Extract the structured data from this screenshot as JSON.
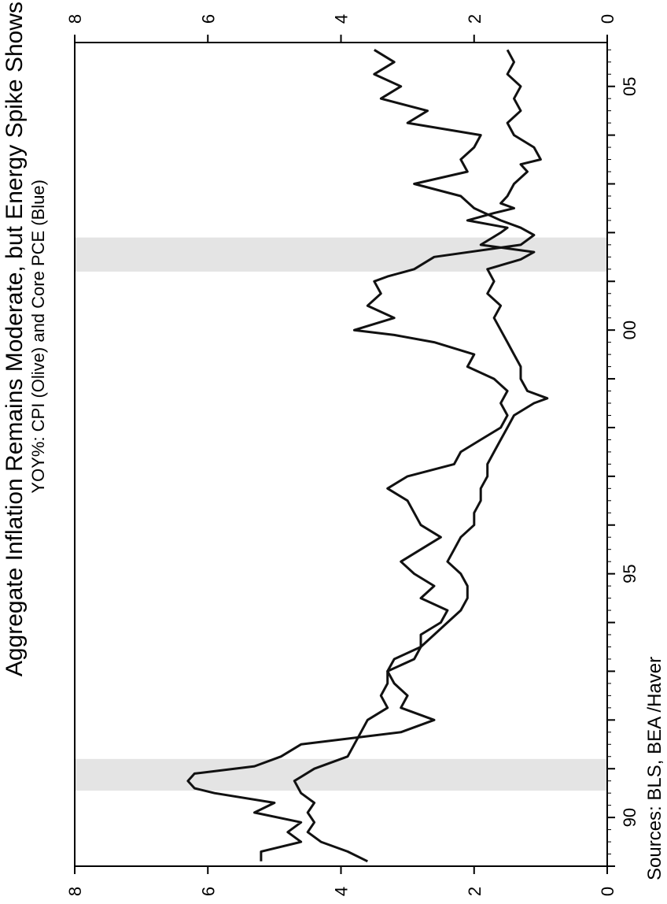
{
  "chart_data": {
    "type": "line",
    "title": "Aggregate Inflation Remains Moderate, but Energy Spike Shows",
    "subtitle": "YOY%: CPI (Olive) and Core PCE (Blue)",
    "source": "Sources:  BLS, BEA /Haver",
    "xlim": [
      1989,
      2005.9
    ],
    "ylim": [
      0,
      8
    ],
    "x_ticks": [
      {
        "value": 1990,
        "label": "90"
      },
      {
        "value": 1995,
        "label": "95"
      },
      {
        "value": 2000,
        "label": "00"
      },
      {
        "value": 2005,
        "label": "05"
      }
    ],
    "y_ticks": [
      {
        "value": 0,
        "label": "0"
      },
      {
        "value": 2,
        "label": "2"
      },
      {
        "value": 4,
        "label": "4"
      },
      {
        "value": 6,
        "label": "6"
      },
      {
        "value": 8,
        "label": "8"
      }
    ],
    "recessions": [
      [
        1990.55,
        1991.2
      ],
      [
        2001.2,
        2001.9
      ]
    ],
    "series": [
      {
        "name": "CPI",
        "x": [
          1989.1,
          1989.3,
          1989.5,
          1989.7,
          1989.9,
          1990.1,
          1990.3,
          1990.5,
          1990.6,
          1990.75,
          1990.9,
          1991.05,
          1991.25,
          1991.5,
          1991.75,
          1992.0,
          1992.25,
          1992.5,
          1992.75,
          1993.0,
          1993.25,
          1993.5,
          1993.75,
          1994.0,
          1994.25,
          1994.5,
          1994.75,
          1995.0,
          1995.25,
          1995.5,
          1995.75,
          1996.0,
          1996.25,
          1996.5,
          1996.75,
          1997.0,
          1997.25,
          1997.5,
          1997.75,
          1998.0,
          1998.25,
          1998.5,
          1998.75,
          1999.0,
          1999.25,
          1999.5,
          1999.75,
          1999.9,
          2000.0,
          2000.25,
          2000.5,
          2000.75,
          2001.0,
          2001.1,
          2001.25,
          2001.5,
          2001.75,
          2001.95,
          2002.1,
          2002.25,
          2002.5,
          2002.75,
          2003.0,
          2003.25,
          2003.5,
          2003.75,
          2004.0,
          2004.25,
          2004.5,
          2004.75,
          2005.0,
          2005.25,
          2005.5,
          2005.75
        ],
        "y": [
          5.2,
          5.2,
          4.6,
          4.8,
          4.6,
          5.3,
          5.0,
          5.9,
          6.2,
          6.3,
          6.2,
          5.3,
          4.9,
          4.6,
          3.1,
          2.6,
          3.1,
          3.0,
          3.2,
          3.3,
          3.2,
          2.8,
          2.8,
          2.5,
          2.4,
          2.8,
          2.6,
          2.9,
          3.1,
          2.8,
          2.5,
          2.8,
          2.9,
          3.0,
          3.3,
          3.0,
          2.3,
          2.2,
          1.9,
          1.6,
          1.5,
          1.6,
          1.5,
          1.7,
          2.1,
          2.0,
          2.6,
          3.2,
          3.8,
          3.2,
          3.6,
          3.4,
          3.5,
          3.3,
          2.9,
          2.6,
          1.3,
          1.1,
          1.3,
          1.6,
          2.0,
          2.2,
          2.9,
          2.1,
          2.2,
          2.0,
          1.9,
          3.0,
          2.7,
          3.4,
          3.1,
          3.5,
          3.2,
          3.5
        ]
      },
      {
        "name": "Core PCE",
        "x": [
          1989.1,
          1989.3,
          1989.5,
          1989.7,
          1989.9,
          1990.1,
          1990.3,
          1990.5,
          1990.75,
          1991.0,
          1991.25,
          1991.5,
          1991.75,
          1992.0,
          1992.25,
          1992.5,
          1992.75,
          1993.0,
          1993.25,
          1993.5,
          1993.75,
          1994.0,
          1994.25,
          1994.5,
          1994.75,
          1995.0,
          1995.25,
          1995.5,
          1995.75,
          1996.0,
          1996.25,
          1996.5,
          1996.75,
          1997.0,
          1997.25,
          1997.5,
          1997.75,
          1998.0,
          1998.25,
          1998.5,
          1998.6,
          1998.75,
          1999.0,
          1999.25,
          1999.5,
          1999.75,
          2000.0,
          2000.25,
          2000.5,
          2000.75,
          2001.0,
          2001.25,
          2001.45,
          2001.6,
          2001.75,
          2002.0,
          2002.1,
          2002.25,
          2002.4,
          2002.5,
          2002.6,
          2002.75,
          2003.0,
          2003.25,
          2003.4,
          2003.5,
          2003.75,
          2004.0,
          2004.25,
          2004.5,
          2004.75,
          2005.0,
          2005.25,
          2005.5,
          2005.75
        ],
        "y": [
          3.6,
          3.9,
          4.3,
          4.5,
          4.4,
          4.5,
          4.4,
          4.6,
          4.7,
          4.4,
          3.9,
          3.8,
          3.7,
          3.6,
          3.3,
          3.4,
          3.3,
          3.3,
          2.9,
          2.8,
          2.6,
          2.4,
          2.2,
          2.1,
          2.1,
          2.2,
          2.4,
          2.3,
          2.2,
          2.0,
          2.0,
          1.9,
          1.9,
          1.8,
          1.8,
          1.7,
          1.6,
          1.5,
          1.4,
          1.1,
          0.9,
          1.2,
          1.3,
          1.3,
          1.4,
          1.5,
          1.6,
          1.7,
          1.6,
          1.8,
          1.7,
          1.8,
          1.3,
          1.1,
          1.9,
          1.6,
          1.5,
          2.1,
          1.7,
          1.4,
          1.6,
          1.5,
          1.4,
          1.2,
          1.3,
          1.0,
          1.1,
          1.4,
          1.5,
          1.3,
          1.4,
          1.3,
          1.5,
          1.4,
          1.5
        ]
      }
    ]
  }
}
